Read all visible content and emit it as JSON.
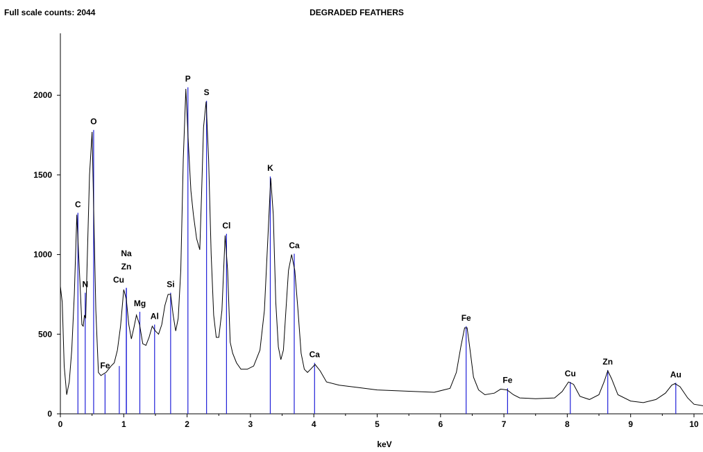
{
  "header": {
    "full_scale": "Full scale counts: 2044"
  },
  "chart_data": {
    "type": "line",
    "title": "DEGRADED FEATHERS",
    "xlabel": "keV",
    "ylabel": "",
    "xlim": [
      0,
      10.15
    ],
    "ylim": [
      0,
      2400
    ],
    "xticks": [
      0,
      1,
      2,
      3,
      4,
      5,
      6,
      7,
      8,
      9,
      10
    ],
    "yticks": [
      0,
      500,
      1000,
      1500,
      2000
    ],
    "grid": false,
    "legend": "none",
    "colors": {
      "spectrum": "#000000",
      "marker": "#1f1fd8",
      "axis": "#000000"
    },
    "spectrum": {
      "name": "",
      "x": [
        0.0,
        0.03,
        0.06,
        0.1,
        0.14,
        0.18,
        0.22,
        0.26,
        0.3,
        0.34,
        0.36,
        0.38,
        0.4,
        0.42,
        0.46,
        0.5,
        0.53,
        0.56,
        0.6,
        0.64,
        0.68,
        0.72,
        0.76,
        0.8,
        0.85,
        0.9,
        0.95,
        1.0,
        1.04,
        1.08,
        1.12,
        1.16,
        1.2,
        1.25,
        1.3,
        1.35,
        1.4,
        1.45,
        1.5,
        1.55,
        1.6,
        1.65,
        1.7,
        1.74,
        1.78,
        1.82,
        1.86,
        1.9,
        1.94,
        1.98,
        2.02,
        2.06,
        2.1,
        2.15,
        2.2,
        2.23,
        2.26,
        2.3,
        2.34,
        2.38,
        2.42,
        2.46,
        2.5,
        2.55,
        2.6,
        2.64,
        2.68,
        2.72,
        2.78,
        2.85,
        2.95,
        3.05,
        3.15,
        3.22,
        3.28,
        3.32,
        3.36,
        3.4,
        3.44,
        3.48,
        3.52,
        3.56,
        3.6,
        3.65,
        3.7,
        3.75,
        3.8,
        3.85,
        3.9,
        3.95,
        4.02,
        4.1,
        4.2,
        4.4,
        4.7,
        5.0,
        5.3,
        5.6,
        5.9,
        6.15,
        6.25,
        6.32,
        6.38,
        6.42,
        6.46,
        6.52,
        6.6,
        6.7,
        6.85,
        6.95,
        7.05,
        7.15,
        7.25,
        7.5,
        7.8,
        7.92,
        8.02,
        8.1,
        8.2,
        8.35,
        8.5,
        8.58,
        8.64,
        8.7,
        8.8,
        9.0,
        9.2,
        9.4,
        9.55,
        9.65,
        9.7,
        9.78,
        9.9,
        10.0,
        10.15
      ],
      "y": [
        800,
        700,
        300,
        120,
        200,
        400,
        750,
        1250,
        900,
        560,
        550,
        620,
        600,
        900,
        1500,
        1770,
        1200,
        650,
        260,
        240,
        250,
        260,
        280,
        300,
        320,
        400,
        550,
        780,
        720,
        560,
        470,
        540,
        620,
        560,
        440,
        430,
        480,
        550,
        520,
        500,
        560,
        680,
        750,
        750,
        620,
        520,
        600,
        900,
        1600,
        2040,
        1700,
        1400,
        1250,
        1100,
        1030,
        1400,
        1800,
        1960,
        1600,
        1000,
        620,
        480,
        480,
        650,
        1120,
        900,
        450,
        380,
        320,
        280,
        280,
        300,
        400,
        650,
        1150,
        1480,
        1250,
        700,
        420,
        340,
        400,
        650,
        900,
        1000,
        900,
        650,
        380,
        280,
        260,
        280,
        310,
        270,
        200,
        180,
        165,
        150,
        145,
        140,
        135,
        160,
        260,
        420,
        540,
        540,
        420,
        230,
        150,
        120,
        130,
        155,
        150,
        120,
        100,
        95,
        100,
        140,
        200,
        185,
        110,
        90,
        120,
        200,
        270,
        220,
        120,
        80,
        70,
        90,
        130,
        180,
        190,
        170,
        100,
        60,
        50
      ]
    },
    "element_markers": [
      {
        "label": "C",
        "x": 0.277,
        "height": 1262
      },
      {
        "label": "N",
        "x": 0.392,
        "height": 760
      },
      {
        "label": "O",
        "x": 0.525,
        "height": 1782
      },
      {
        "label": "Fe",
        "x": 0.705,
        "height": 250
      },
      {
        "label": "",
        "x": 0.93,
        "height": 300
      },
      {
        "label": "Na",
        "x": 1.041,
        "height": 790
      },
      {
        "label": "Zn",
        "x": 1.041,
        "height": 790
      },
      {
        "label": "Cu",
        "x": 1.041,
        "height": 790
      },
      {
        "label": "Mg",
        "x": 1.254,
        "height": 640
      },
      {
        "label": "Al",
        "x": 1.487,
        "height": 560
      },
      {
        "label": "Si",
        "x": 1.74,
        "height": 760
      },
      {
        "label": "P",
        "x": 2.013,
        "height": 2050
      },
      {
        "label": "S",
        "x": 2.307,
        "height": 1965
      },
      {
        "label": "Cl",
        "x": 2.622,
        "height": 1130
      },
      {
        "label": "K",
        "x": 3.313,
        "height": 1490
      },
      {
        "label": "Ca",
        "x": 3.691,
        "height": 1005
      },
      {
        "label": "Ca",
        "x": 4.012,
        "height": 320
      },
      {
        "label": "Fe",
        "x": 6.404,
        "height": 550
      },
      {
        "label": "Fe",
        "x": 7.058,
        "height": 160
      },
      {
        "label": "Cu",
        "x": 8.048,
        "height": 200
      },
      {
        "label": "Zn",
        "x": 8.639,
        "height": 275
      },
      {
        "label": "Au",
        "x": 9.713,
        "height": 195
      }
    ]
  }
}
